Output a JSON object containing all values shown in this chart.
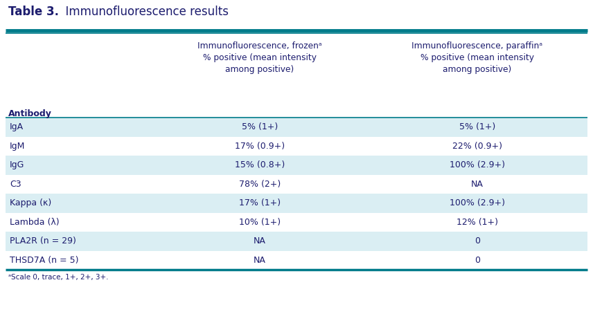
{
  "title_bold": "Table 3.",
  "title_normal": "  Immunofluorescence results",
  "col2_header": "Immunofluorescence, frozenᵃ\n% positive (mean intensity\namong positive)",
  "col3_header": "Immunofluorescence, paraffinᵃ\n% positive (mean intensity\namong positive)",
  "antibody_label": "Antibody",
  "rows": [
    [
      "IgA",
      "5% (1+)",
      "5% (1+)"
    ],
    [
      "IgM",
      "17% (0.9+)",
      "22% (0.9+)"
    ],
    [
      "IgG",
      "15% (0.8+)",
      "100% (2.9+)"
    ],
    [
      "C3",
      "78% (2+)",
      "NA"
    ],
    [
      "Kappa (κ)",
      "17% (1+)",
      "100% (2.9+)"
    ],
    [
      "Lambda (λ)",
      "10% (1+)",
      "12% (1+)"
    ],
    [
      "PLA2R (n = 29)",
      "NA",
      "0"
    ],
    [
      "THSD7A (n = 5)",
      "NA",
      "0"
    ]
  ],
  "footnote": "ᵃScale 0, trace, 1+, 2+, 3+.",
  "teal_color": "#007B8A",
  "light_blue": "#daeef3",
  "white": "#FFFFFF",
  "light_rows": [
    0,
    2,
    4,
    6
  ],
  "text_color": "#1C1C6E",
  "title_bg": "#FFFFFF"
}
